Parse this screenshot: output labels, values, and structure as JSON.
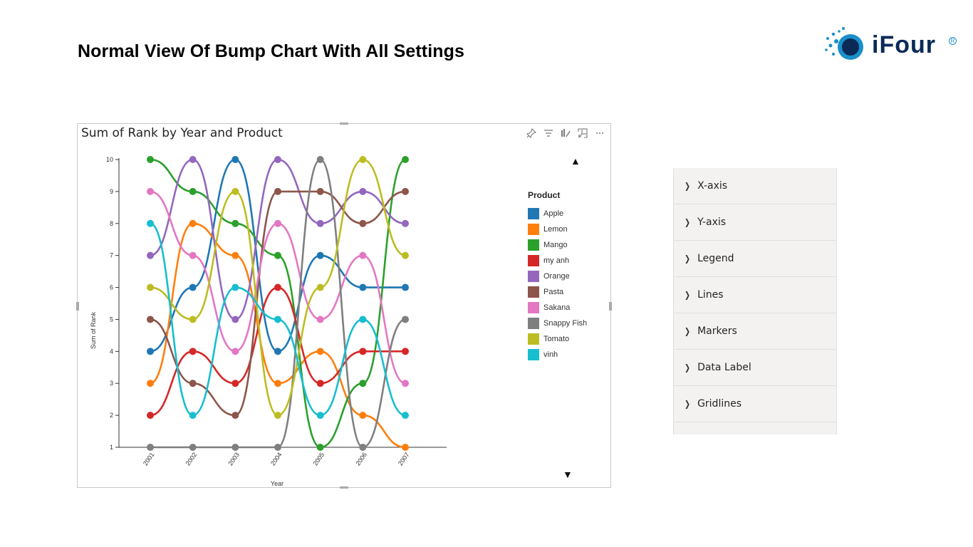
{
  "slide": {
    "title": "Normal View Of Bump Chart With All Settings"
  },
  "logo": {
    "text": "iFour",
    "registered": "R",
    "brand_color": "#0b2a57",
    "accent_color": "#1a8fc9"
  },
  "visual": {
    "title": "Sum of Rank by Year and Product",
    "toolbar_icons": [
      "pin-icon",
      "filter-icon",
      "brush-icon",
      "focus-icon",
      "more-icon"
    ],
    "scroll_up": "▲",
    "scroll_down": "▼"
  },
  "legend": {
    "title": "Product",
    "placement": "right"
  },
  "chart_data": {
    "type": "line",
    "title": "Sum of Rank by Year and Product",
    "xlabel": "Year",
    "ylabel": "Sum of Rank",
    "x": [
      "2001",
      "2002",
      "2003",
      "2004",
      "2005",
      "2006",
      "2007"
    ],
    "yticks": [
      1,
      2,
      3,
      4,
      5,
      6,
      7,
      8,
      9,
      10
    ],
    "ylim": [
      1,
      10
    ],
    "grid": false,
    "series": [
      {
        "name": "Apple",
        "color": "#1f77b4",
        "values": [
          4,
          6,
          10,
          4,
          7,
          6,
          6
        ]
      },
      {
        "name": "Lemon",
        "color": "#ff7f0e",
        "values": [
          3,
          8,
          7,
          3,
          4,
          2,
          1
        ]
      },
      {
        "name": "Mango",
        "color": "#2ca02c",
        "values": [
          10,
          9,
          8,
          7,
          1,
          3,
          10
        ]
      },
      {
        "name": "my anh",
        "color": "#d62728",
        "values": [
          2,
          4,
          3,
          6,
          3,
          4,
          4
        ]
      },
      {
        "name": "Orange",
        "color": "#9467bd",
        "values": [
          7,
          10,
          5,
          10,
          8,
          9,
          8
        ]
      },
      {
        "name": "Pasta",
        "color": "#8c564b",
        "values": [
          5,
          3,
          2,
          9,
          9,
          8,
          9
        ]
      },
      {
        "name": "Sakana",
        "color": "#e377c2",
        "values": [
          9,
          7,
          4,
          8,
          5,
          7,
          3
        ]
      },
      {
        "name": "Snappy Fish",
        "color": "#7f7f7f",
        "values": [
          1,
          1,
          1,
          1,
          10,
          1,
          5
        ]
      },
      {
        "name": "Tomato",
        "color": "#bcbd22",
        "values": [
          6,
          5,
          9,
          2,
          6,
          10,
          7
        ]
      },
      {
        "name": "vinh",
        "color": "#17becf",
        "values": [
          8,
          2,
          6,
          5,
          2,
          5,
          2
        ]
      }
    ]
  },
  "panel": {
    "items": [
      {
        "label": "X-axis"
      },
      {
        "label": "Y-axis"
      },
      {
        "label": "Legend"
      },
      {
        "label": "Lines"
      },
      {
        "label": "Markers"
      },
      {
        "label": "Data Label"
      },
      {
        "label": "Gridlines"
      },
      {
        "label": ""
      }
    ]
  }
}
